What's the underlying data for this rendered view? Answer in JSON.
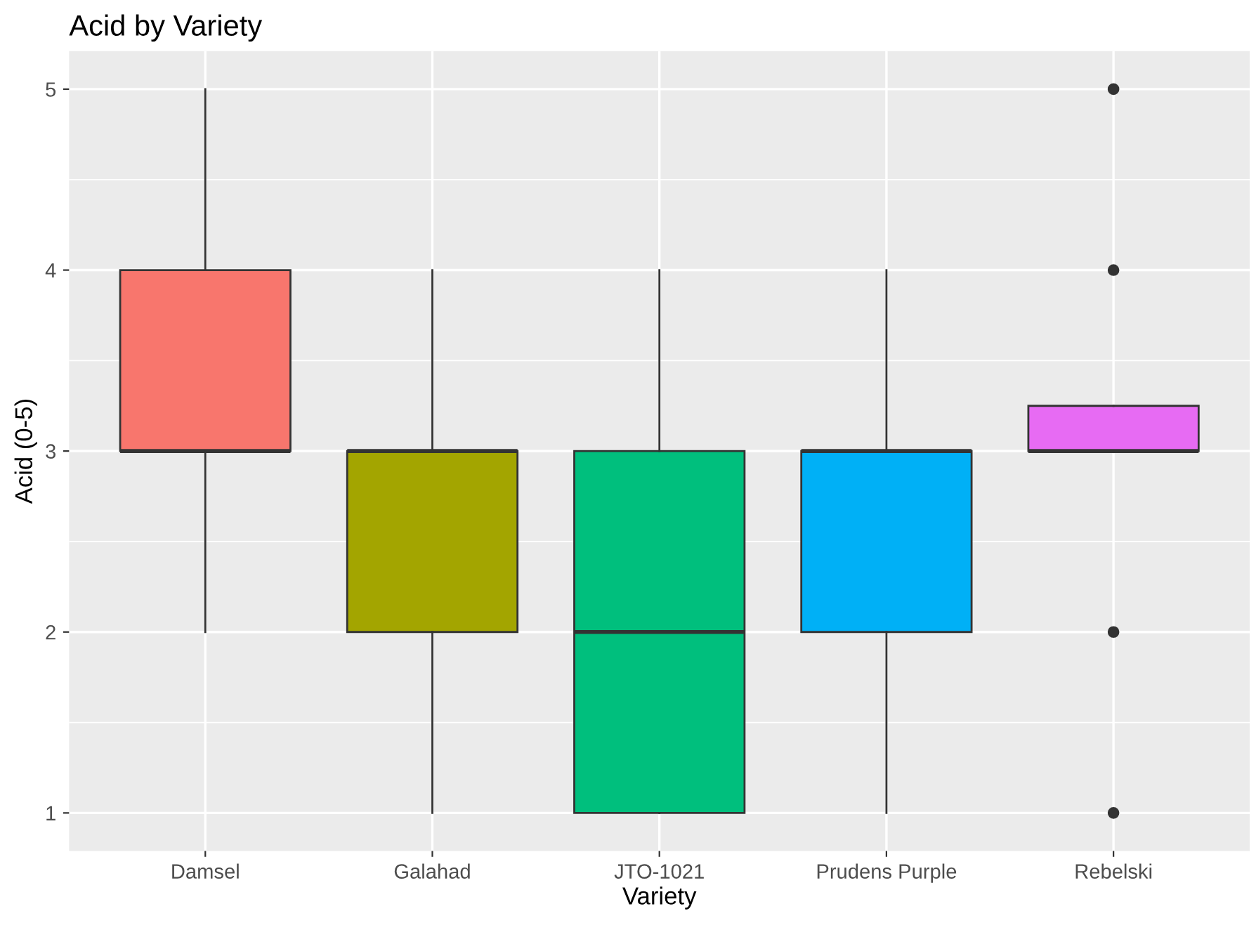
{
  "chart_data": {
    "type": "box",
    "title": "Acid by Variety",
    "xlabel": "Variety",
    "ylabel": "Acid (0-5)",
    "categories": [
      "Damsel",
      "Galahad",
      "JTO-1021",
      "Prudens Purple",
      "Rebelski"
    ],
    "colors": [
      "#f8766d",
      "#a3a500",
      "#00bf7d",
      "#00b0f6",
      "#e76bf3"
    ],
    "boxes": [
      {
        "low": 2,
        "q1": 3,
        "median": 3,
        "q3": 4,
        "high": 5
      },
      {
        "low": 1,
        "q1": 2,
        "median": 3,
        "q3": 3,
        "high": 4
      },
      {
        "low": 1,
        "q1": 1,
        "median": 2,
        "q3": 3,
        "high": 4
      },
      {
        "low": 1,
        "q1": 2,
        "median": 3,
        "q3": 3,
        "high": 4
      },
      {
        "low": 3,
        "q1": 3,
        "median": 3,
        "q3": 3.25,
        "high": 3.25,
        "outliers": [
          1,
          2,
          4,
          5
        ]
      }
    ],
    "ylim": [
      0.79,
      5.21
    ],
    "yticks": [
      1,
      2,
      3,
      4,
      5
    ],
    "grid": true
  }
}
